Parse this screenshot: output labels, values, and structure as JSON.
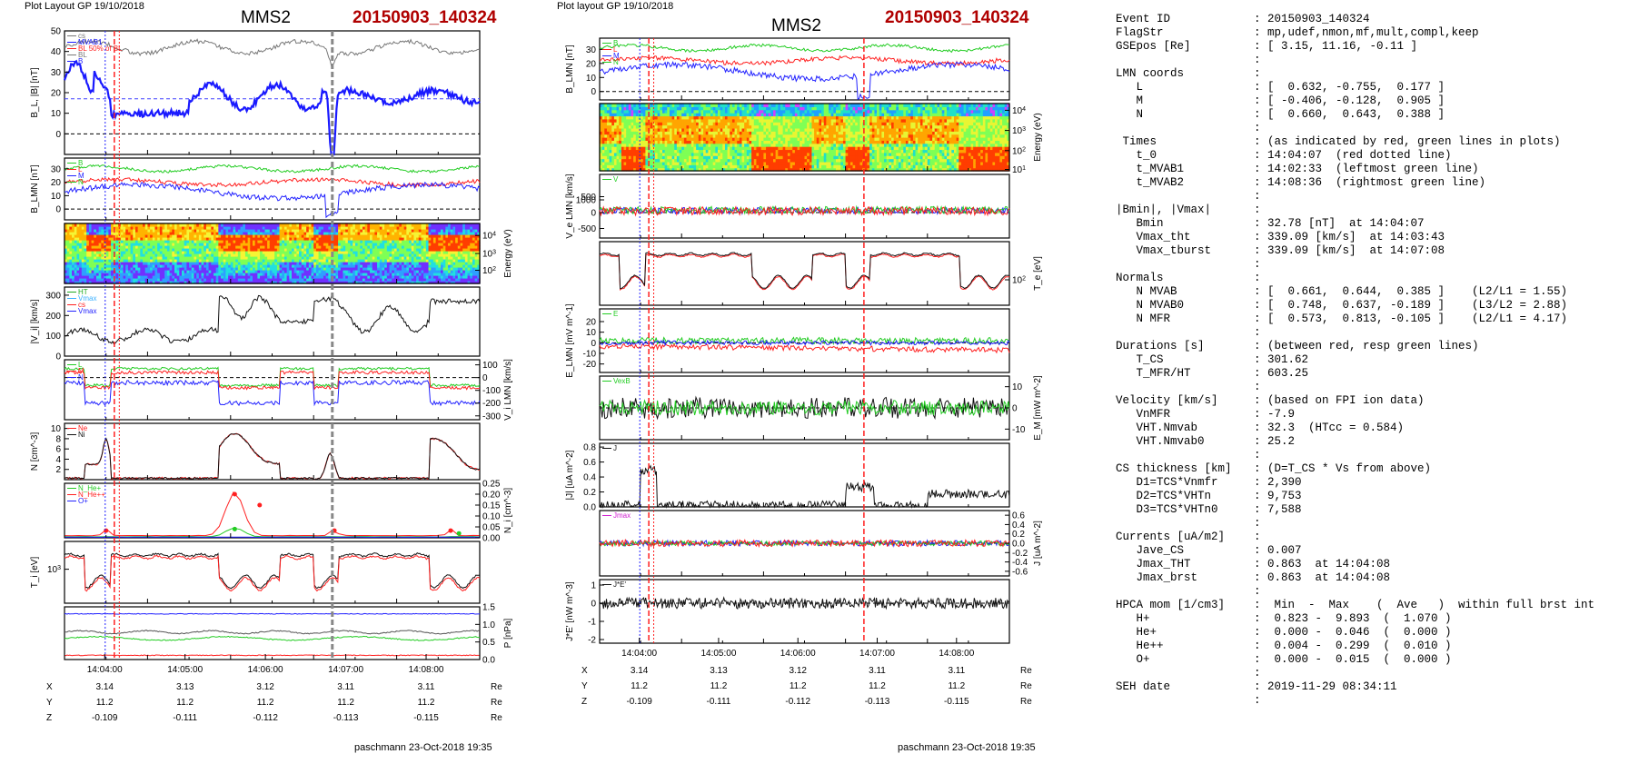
{
  "left_plot": {
    "header": "Plot Layout GP 19/10/2018",
    "title": "MMS2",
    "event": "20150903_140324",
    "footer": "paschmann 23-Oct-2018 19:35"
  },
  "right_plot": {
    "header": "Plot layout GP 19/10/2018",
    "title": "MMS2",
    "event": "20150903_140324",
    "footer": "paschmann 23-Oct-2018 19:35"
  },
  "time_ticks": [
    "14:04:00",
    "14:05:00",
    "14:06:00",
    "14:07:00",
    "14:08:00"
  ],
  "position_table": {
    "rows": [
      {
        "label": "X",
        "values": [
          "3.14",
          "3.13",
          "3.12",
          "3.11",
          "3.11"
        ],
        "unit": "Re"
      },
      {
        "label": "Y",
        "values": [
          "11.2",
          "11.2",
          "11.2",
          "11.2",
          "11.2"
        ],
        "unit": "Re"
      },
      {
        "label": "Z",
        "values": [
          "-0.109",
          "-0.111",
          "-0.112",
          "-0.113",
          "-0.115"
        ],
        "unit": "Re"
      }
    ]
  },
  "chart_data": [
    {
      "type": "line",
      "title": "MMS2",
      "subtitle": "20150903_140324",
      "x_range": [
        "14:03:30",
        "14:08:40"
      ],
      "panels": [
        {
          "ylabel": "B_L, |B| [nT]",
          "ylim": [
            -10,
            50
          ],
          "yticks": [
            "0",
            "10",
            "20",
            "30",
            "40",
            "50"
          ],
          "legend": [
            "cs",
            "MVAB1",
            "BL 50% of BL",
            "BL",
            "B"
          ],
          "colors": [
            "#777777",
            "#1a1aff",
            "#ff2020"
          ]
        },
        {
          "ylabel": "B_LMN [nT]",
          "ylim": [
            -8,
            38
          ],
          "yticks": [
            "0",
            "10",
            "20",
            "30"
          ],
          "legend": [
            "B",
            "L",
            "M",
            "N"
          ],
          "colors": [
            "#22cc22",
            "#ff2020",
            "#2222ff"
          ]
        },
        {
          "type": "heatmap",
          "ylabel": "Energy (eV)",
          "yscale": "log",
          "yticks": [
            "10^2",
            "10^3",
            "10^4"
          ]
        },
        {
          "ylabel": "|V_i| [km/s]",
          "ylim": [
            0,
            340
          ],
          "yticks": [
            "0",
            "100",
            "200",
            "300"
          ],
          "legend": [
            "HT",
            "Vmax",
            "cs",
            "Vmax"
          ],
          "colors": [
            "#111111"
          ]
        },
        {
          "ylabel": "V_i LMN [km/s]",
          "ylim": [
            -330,
            140
          ],
          "yticks": [
            "100",
            "0",
            "-100",
            "-200",
            "-300"
          ],
          "legend": [
            "L",
            "M",
            "N"
          ],
          "colors": [
            "#22cc22",
            "#ff2020",
            "#2222ff"
          ]
        },
        {
          "ylabel": "N [cm^-3]",
          "ylim": [
            0,
            11
          ],
          "yticks": [
            "2",
            "4",
            "6",
            "8",
            "10"
          ],
          "legend": [
            "Ne",
            "Ni"
          ],
          "colors": [
            "#ff2020",
            "#111111"
          ]
        },
        {
          "ylabel": "N_i [cm^-3]",
          "ylim": [
            0,
            0.25
          ],
          "yticks": [
            "0.00",
            "0.05",
            "0.10",
            "0.15",
            "0.20",
            "0.25"
          ],
          "legend": [
            "N_He+",
            "N_He++",
            "O+"
          ],
          "colors": [
            "#22cc22",
            "#ff2020",
            "#2222ff"
          ]
        },
        {
          "ylabel": "T_i [eV]",
          "yscale": "log",
          "yticks": [
            "10^3"
          ],
          "colors": [
            "#111111",
            "#ff2020"
          ]
        },
        {
          "ylabel": "P [nPa]",
          "ylim": [
            0,
            1.5
          ],
          "yticks": [
            "0.0",
            "0.5",
            "1.0",
            "1.5"
          ],
          "colors": [
            "#555555",
            "#22cc22",
            "#2222ff",
            "#ff2020"
          ]
        }
      ]
    },
    {
      "type": "line",
      "title": "MMS2",
      "subtitle": "20150903_140324",
      "x_range": [
        "14:03:30",
        "14:08:40"
      ],
      "panels": [
        {
          "ylabel": "B_LMN [nT]",
          "ylim": [
            -6,
            38
          ],
          "yticks": [
            "0",
            "10",
            "20",
            "30"
          ],
          "legend": [
            "B",
            "L",
            "M",
            "N"
          ],
          "colors": [
            "#22cc22",
            "#ff2020",
            "#2222ff"
          ]
        },
        {
          "type": "heatmap",
          "ylabel": "Energy (eV)",
          "yscale": "log",
          "yticks": [
            "10^1",
            "10^2",
            "10^3",
            "10^4"
          ]
        },
        {
          "ylabel": "V_e LMN [km/s]",
          "ylim": [
            -800,
            1200
          ],
          "yticks": [
            "1000",
            "500",
            "0",
            "-500"
          ],
          "legend": [
            "V"
          ],
          "colors": [
            "#22cc22",
            "#ff2020",
            "#2222ff"
          ]
        },
        {
          "ylabel": "T_e [eV]",
          "yscale": "log",
          "yticks": [
            "10^2"
          ],
          "colors": [
            "#111111",
            "#ff2020"
          ]
        },
        {
          "ylabel": "E_LMN [mV m^-1]",
          "ylim": [
            -28,
            32
          ],
          "yticks": [
            "20",
            "10",
            "0",
            "-10",
            "-20"
          ],
          "legend": [
            "E"
          ],
          "colors": [
            "#22cc22",
            "#ff2020",
            "#2222ff"
          ]
        },
        {
          "ylabel": "E_M [mW m^-2]",
          "ylim": [
            -15,
            15
          ],
          "yticks": [
            "10",
            "0",
            "-10"
          ],
          "legend": [
            "VexB"
          ],
          "colors": [
            "#22cc22",
            "#111111"
          ]
        },
        {
          "ylabel": "|J| [uA m^-2]",
          "ylim": [
            0,
            0.85
          ],
          "yticks": [
            "0.0",
            "0.2",
            "0.4",
            "0.6",
            "0.8"
          ],
          "legend": [
            "J"
          ],
          "colors": [
            "#111111"
          ]
        },
        {
          "ylabel": "J [uA m^-2]",
          "ylim": [
            -0.7,
            0.7
          ],
          "yticks": [
            "0.6",
            "0.4",
            "0.2",
            "0.0",
            "-0.2",
            "-0.4",
            "-0.6"
          ],
          "legend": [
            "Jmax"
          ],
          "colors": [
            "#22cc22",
            "#ff2020",
            "#2222ff"
          ]
        },
        {
          "ylabel": "J*E' [nW m^-3]",
          "ylim": [
            -2.2,
            1.3
          ],
          "yticks": [
            "1",
            "0",
            "-1",
            "-2"
          ],
          "legend": [
            "J*E'"
          ],
          "colors": [
            "#111111"
          ]
        }
      ]
    }
  ],
  "info": [
    {
      "key": "Event ID",
      "val": "20150903_140324"
    },
    {
      "key": "FlagStr",
      "val": "mp,udef,nmon,mf,mult,compl,keep"
    },
    {
      "key": "GSEpos [Re]",
      "val": "[ 3.15, 11.16, -0.11 ]"
    },
    {
      "key": "",
      "val": ""
    },
    {
      "key": "LMN coords",
      "val": ""
    },
    {
      "key": "   L",
      "val": "[  0.632, -0.755,  0.177 ]"
    },
    {
      "key": "   M",
      "val": "[ -0.406, -0.128,  0.905 ]"
    },
    {
      "key": "   N",
      "val": "[  0.660,  0.643,  0.388 ]"
    },
    {
      "key": "",
      "val": ""
    },
    {
      "key": " Times",
      "val": "(as indicated by red, green lines in plots)"
    },
    {
      "key": "   t_0",
      "val": "14:04:07  (red dotted line)"
    },
    {
      "key": "   t_MVAB1",
      "val": "14:02:33  (leftmost green line)"
    },
    {
      "key": "   t_MVAB2",
      "val": "14:08:36  (rightmost green line)"
    },
    {
      "key": "",
      "val": ""
    },
    {
      "key": "|Bmin|, |Vmax|",
      "val": ""
    },
    {
      "key": "   Bmin",
      "val": "32.78 [nT]  at 14:04:07"
    },
    {
      "key": "   Vmax_tht",
      "val": "339.09 [km/s]  at 14:03:43"
    },
    {
      "key": "   Vmax_tburst",
      "val": "339.09 [km/s]  at 14:07:08"
    },
    {
      "key": "",
      "val": ""
    },
    {
      "key": "Normals",
      "val": ""
    },
    {
      "key": "   N MVAB",
      "val": "[  0.661,  0.644,  0.385 ]    (L2/L1 = 1.55)"
    },
    {
      "key": "   N MVAB0",
      "val": "[  0.748,  0.637, -0.189 ]    (L3/L2 = 2.88)"
    },
    {
      "key": "   N MFR",
      "val": "[  0.573,  0.813, -0.105 ]    (L2/L1 = 4.17)"
    },
    {
      "key": "",
      "val": ""
    },
    {
      "key": "Durations [s]",
      "val": "(between red, resp green lines)"
    },
    {
      "key": "   T_CS",
      "val": "301.62"
    },
    {
      "key": "   T_MFR/HT",
      "val": "603.25"
    },
    {
      "key": "",
      "val": ""
    },
    {
      "key": "Velocity [km/s]",
      "val": "(based on FPI ion data)"
    },
    {
      "key": "   VnMFR",
      "val": "-7.9"
    },
    {
      "key": "   VHT.Nmvab",
      "val": "32.3  (HTcc = 0.584)"
    },
    {
      "key": "   VHT.Nmvab0",
      "val": "25.2"
    },
    {
      "key": "",
      "val": ""
    },
    {
      "key": "CS thickness [km]",
      "val": "(D=T_CS * Vs from above)"
    },
    {
      "key": "   D1=TCS*Vnmfr",
      "val": "2,390"
    },
    {
      "key": "   D2=TCS*VHTn",
      "val": "9,753"
    },
    {
      "key": "   D3=TCS*VHTn0",
      "val": "7,588"
    },
    {
      "key": "",
      "val": ""
    },
    {
      "key": "Currents [uA/m2]",
      "val": ""
    },
    {
      "key": "   Jave_CS",
      "val": "0.007"
    },
    {
      "key": "   Jmax_THT",
      "val": "0.863  at 14:04:08"
    },
    {
      "key": "   Jmax_brst",
      "val": "0.863  at 14:04:08"
    },
    {
      "key": "",
      "val": ""
    },
    {
      "key": "HPCA mom [1/cm3]",
      "val": " Min  -  Max    (  Ave   )  within full brst int"
    },
    {
      "key": "   H+",
      "val": " 0.823 -  9.893  (  1.070 )"
    },
    {
      "key": "   He+",
      "val": " 0.000 -  0.046  (  0.000 )"
    },
    {
      "key": "   He++",
      "val": " 0.004 -  0.299  (  0.010 )"
    },
    {
      "key": "   O+",
      "val": " 0.000 -  0.015  (  0.000 )"
    },
    {
      "key": "",
      "val": ""
    },
    {
      "key": "SEH date",
      "val": "2019-11-29 08:34:11"
    },
    {
      "key": "",
      "val": ""
    }
  ]
}
